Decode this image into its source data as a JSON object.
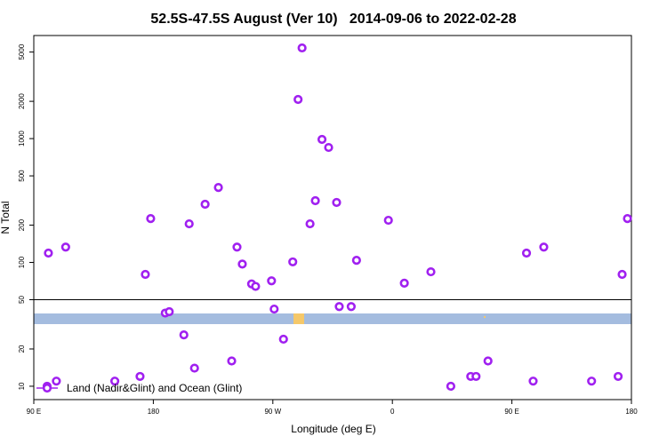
{
  "chart_data": {
    "type": "scatter",
    "title": "52.5S-47.5S August (Ver 10)   2014-09-06 to 2022-02-28",
    "x_label": "Longitude (deg E)",
    "y_label": "N Total",
    "log_y": true,
    "legend_position": "bottom-left",
    "hline": 50,
    "xlim": [
      90,
      540
    ],
    "ylim": [
      7.8,
      6800
    ],
    "xticks": [
      {
        "value": 90,
        "label": "90 E"
      },
      180,
      {
        "value": 270,
        "label": "90 W"
      },
      {
        "value": 360,
        "label": "0"
      },
      {
        "value": 450,
        "label": "90 E"
      },
      {
        "value": 540,
        "label": "180"
      }
    ],
    "yticks": [
      10,
      20,
      50,
      100,
      200,
      500,
      1000,
      2000,
      5000
    ],
    "series": [
      {
        "name": "Land (Nadir&Glint) and Ocean (Glint)",
        "color": "#a020f0",
        "x": [
          101,
          114,
          100,
          107,
          151,
          170,
          174,
          178,
          189,
          192,
          203,
          207,
          211,
          219,
          229,
          239,
          243,
          247,
          254,
          257,
          269,
          271,
          278,
          285,
          289,
          292,
          298,
          302,
          307,
          312,
          318,
          320,
          329,
          333,
          357,
          369,
          389,
          404,
          419,
          423,
          432,
          461,
          466,
          474,
          510,
          530,
          533,
          537
        ],
        "values": [
          119,
          133,
          10,
          11,
          11,
          12,
          80,
          226,
          39,
          40,
          26,
          205,
          14,
          295,
          403,
          16,
          133,
          97,
          67,
          64,
          71,
          42,
          24,
          101,
          2070,
          5400,
          205,
          315,
          985,
          848,
          305,
          44,
          44,
          104,
          219,
          68,
          84,
          10,
          12,
          12,
          16,
          119,
          11,
          133,
          11,
          12,
          80,
          226
        ]
      }
    ]
  }
}
